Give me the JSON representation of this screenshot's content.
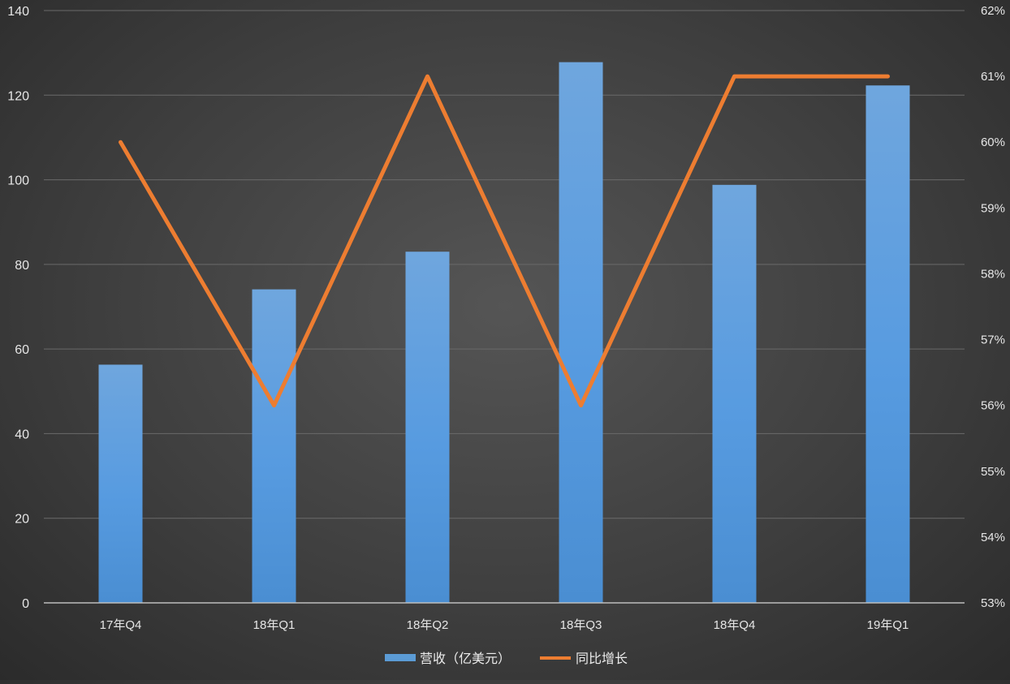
{
  "chart_data": {
    "type": "bar",
    "categories": [
      "17年Q4",
      "18年Q1",
      "18年Q2",
      "18年Q3",
      "18年Q4",
      "19年Q1"
    ],
    "series": [
      {
        "name": "营收（亿美元）",
        "type": "bar",
        "axis": "left",
        "color": "#5b9bd5",
        "values": [
          56.3,
          74.1,
          83.0,
          127.8,
          98.8,
          122.3
        ]
      },
      {
        "name": "同比增长",
        "type": "line",
        "axis": "right",
        "color": "#ed7d31",
        "values": [
          60,
          56,
          61,
          56,
          61,
          61
        ]
      }
    ],
    "y_left": {
      "min": 0,
      "max": 140,
      "step": 20,
      "ticks": [
        "0",
        "20",
        "40",
        "60",
        "80",
        "100",
        "120",
        "140"
      ]
    },
    "y_right": {
      "min": 53,
      "max": 62,
      "step": 1,
      "ticks": [
        "53%",
        "54%",
        "55%",
        "56%",
        "57%",
        "58%",
        "59%",
        "60%",
        "61%",
        "62%"
      ]
    },
    "title": "",
    "xlabel": "",
    "ylabel": "",
    "grid": true,
    "legend": "bottom-center"
  }
}
